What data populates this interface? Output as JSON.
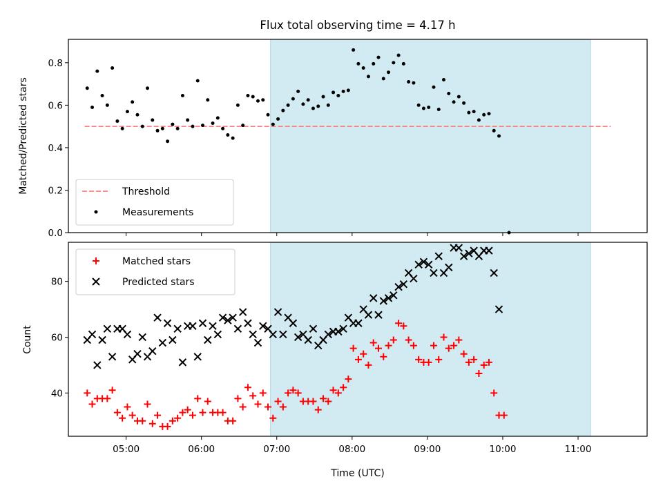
{
  "title": "Flux total observing time = 4.17 h",
  "chart_data": [
    {
      "type": "scatter",
      "ylabel": "Matched/Predicted stars",
      "ylim": [
        0,
        0.91
      ],
      "y_ticks": [
        "0.0",
        "0.2",
        "0.4",
        "0.6",
        "0.8"
      ],
      "x_range": [
        "04:14",
        "11:55"
      ],
      "shaded_interval": [
        "06:55",
        "11:10"
      ],
      "shade_color": "#add8e6",
      "threshold": {
        "name": "Threshold",
        "value": 0.5,
        "x_start": "04:27",
        "x_end": "11:26",
        "color": "#ff7f7f"
      },
      "legend": [
        "Threshold",
        "Measurements"
      ],
      "legend_position": "lower-left",
      "series": [
        {
          "name": "Measurements",
          "color": "#000000",
          "points": [
            [
              "04:29",
              0.68
            ],
            [
              "04:33",
              0.59
            ],
            [
              "04:37",
              0.76
            ],
            [
              "04:41",
              0.645
            ],
            [
              "04:45",
              0.6
            ],
            [
              "04:49",
              0.775
            ],
            [
              "04:53",
              0.525
            ],
            [
              "04:57",
              0.49
            ],
            [
              "05:01",
              0.57
            ],
            [
              "05:05",
              0.615
            ],
            [
              "05:09",
              0.555
            ],
            [
              "05:13",
              0.5
            ],
            [
              "05:17",
              0.68
            ],
            [
              "05:21",
              0.53
            ],
            [
              "05:25",
              0.48
            ],
            [
              "05:29",
              0.49
            ],
            [
              "05:33",
              0.43
            ],
            [
              "05:37",
              0.51
            ],
            [
              "05:41",
              0.49
            ],
            [
              "05:45",
              0.645
            ],
            [
              "05:49",
              0.53
            ],
            [
              "05:53",
              0.5
            ],
            [
              "05:57",
              0.715
            ],
            [
              "06:01",
              0.505
            ],
            [
              "06:05",
              0.625
            ],
            [
              "06:09",
              0.515
            ],
            [
              "06:13",
              0.54
            ],
            [
              "06:17",
              0.49
            ],
            [
              "06:21",
              0.46
            ],
            [
              "06:25",
              0.445
            ],
            [
              "06:29",
              0.6
            ],
            [
              "06:33",
              0.505
            ],
            [
              "06:37",
              0.645
            ],
            [
              "06:41",
              0.64
            ],
            [
              "06:45",
              0.62
            ],
            [
              "06:49",
              0.625
            ],
            [
              "06:53",
              0.555
            ],
            [
              "06:57",
              0.51
            ],
            [
              "07:01",
              0.535
            ],
            [
              "07:05",
              0.575
            ],
            [
              "07:09",
              0.6
            ],
            [
              "07:13",
              0.63
            ],
            [
              "07:17",
              0.665
            ],
            [
              "07:21",
              0.605
            ],
            [
              "07:25",
              0.625
            ],
            [
              "07:29",
              0.585
            ],
            [
              "07:33",
              0.595
            ],
            [
              "07:37",
              0.64
            ],
            [
              "07:41",
              0.6
            ],
            [
              "07:45",
              0.66
            ],
            [
              "07:49",
              0.645
            ],
            [
              "07:53",
              0.665
            ],
            [
              "07:57",
              0.67
            ],
            [
              "08:01",
              0.86
            ],
            [
              "08:05",
              0.795
            ],
            [
              "08:09",
              0.775
            ],
            [
              "08:13",
              0.735
            ],
            [
              "08:17",
              0.795
            ],
            [
              "08:21",
              0.825
            ],
            [
              "08:25",
              0.725
            ],
            [
              "08:29",
              0.755
            ],
            [
              "08:33",
              0.8
            ],
            [
              "08:37",
              0.835
            ],
            [
              "08:41",
              0.795
            ],
            [
              "08:45",
              0.71
            ],
            [
              "08:49",
              0.705
            ],
            [
              "08:53",
              0.6
            ],
            [
              "08:57",
              0.585
            ],
            [
              "09:01",
              0.59
            ],
            [
              "09:05",
              0.685
            ],
            [
              "09:09",
              0.58
            ],
            [
              "09:13",
              0.72
            ],
            [
              "09:17",
              0.655
            ],
            [
              "09:21",
              0.615
            ],
            [
              "09:25",
              0.64
            ],
            [
              "09:29",
              0.61
            ],
            [
              "09:33",
              0.565
            ],
            [
              "09:37",
              0.57
            ],
            [
              "09:41",
              0.53
            ],
            [
              "09:45",
              0.555
            ],
            [
              "09:49",
              0.56
            ],
            [
              "09:53",
              0.48
            ],
            [
              "09:57",
              0.455
            ],
            [
              "10:05",
              0.0
            ]
          ]
        }
      ]
    },
    {
      "type": "scatter",
      "xlabel": "Time (UTC)",
      "ylabel": "Count",
      "ylim": [
        24.5,
        94
      ],
      "y_ticks": [
        "40",
        "60",
        "80"
      ],
      "x_ticks": [
        "05:00",
        "06:00",
        "07:00",
        "08:00",
        "09:00",
        "10:00",
        "11:00"
      ],
      "x_range": [
        "04:14",
        "11:55"
      ],
      "shaded_interval": [
        "06:55",
        "11:10"
      ],
      "shade_color": "#add8e6",
      "legend": [
        "Matched stars",
        "Predicted stars"
      ],
      "legend_position": "upper-left",
      "series": [
        {
          "name": "Matched stars",
          "color": "#ff0000",
          "points": [
            [
              "04:29",
              40
            ],
            [
              "04:33",
              36
            ],
            [
              "04:37",
              38
            ],
            [
              "04:41",
              38
            ],
            [
              "04:45",
              38
            ],
            [
              "04:49",
              41
            ],
            [
              "04:53",
              33
            ],
            [
              "04:57",
              31
            ],
            [
              "05:01",
              35
            ],
            [
              "05:05",
              32
            ],
            [
              "05:09",
              30
            ],
            [
              "05:13",
              30
            ],
            [
              "05:17",
              36
            ],
            [
              "05:21",
              29
            ],
            [
              "05:25",
              32
            ],
            [
              "05:29",
              28
            ],
            [
              "05:33",
              28
            ],
            [
              "05:37",
              30
            ],
            [
              "05:41",
              31
            ],
            [
              "05:45",
              33
            ],
            [
              "05:49",
              34
            ],
            [
              "05:53",
              32
            ],
            [
              "05:57",
              38
            ],
            [
              "06:01",
              33
            ],
            [
              "06:05",
              37
            ],
            [
              "06:09",
              33
            ],
            [
              "06:13",
              33
            ],
            [
              "06:17",
              33
            ],
            [
              "06:21",
              30
            ],
            [
              "06:25",
              30
            ],
            [
              "06:29",
              38
            ],
            [
              "06:33",
              35
            ],
            [
              "06:37",
              42
            ],
            [
              "06:41",
              39
            ],
            [
              "06:45",
              36
            ],
            [
              "06:49",
              40
            ],
            [
              "06:53",
              35
            ],
            [
              "06:57",
              31
            ],
            [
              "07:01",
              37
            ],
            [
              "07:05",
              35
            ],
            [
              "07:09",
              40
            ],
            [
              "07:13",
              41
            ],
            [
              "07:17",
              40
            ],
            [
              "07:21",
              37
            ],
            [
              "07:25",
              37
            ],
            [
              "07:29",
              37
            ],
            [
              "07:33",
              34
            ],
            [
              "07:37",
              38
            ],
            [
              "07:41",
              37
            ],
            [
              "07:45",
              41
            ],
            [
              "07:49",
              40
            ],
            [
              "07:53",
              42
            ],
            [
              "07:57",
              45
            ],
            [
              "08:01",
              56
            ],
            [
              "08:05",
              52
            ],
            [
              "08:09",
              54
            ],
            [
              "08:13",
              50
            ],
            [
              "08:17",
              58
            ],
            [
              "08:21",
              56
            ],
            [
              "08:25",
              53
            ],
            [
              "08:29",
              57
            ],
            [
              "08:33",
              59
            ],
            [
              "08:37",
              65
            ],
            [
              "08:41",
              64
            ],
            [
              "08:45",
              59
            ],
            [
              "08:49",
              57
            ],
            [
              "08:53",
              52
            ],
            [
              "08:57",
              51
            ],
            [
              "09:01",
              51
            ],
            [
              "09:05",
              57
            ],
            [
              "09:09",
              52
            ],
            [
              "09:13",
              60
            ],
            [
              "09:17",
              56
            ],
            [
              "09:21",
              57
            ],
            [
              "09:25",
              59
            ],
            [
              "09:29",
              54
            ],
            [
              "09:33",
              51
            ],
            [
              "09:37",
              52
            ],
            [
              "09:41",
              47
            ],
            [
              "09:45",
              50
            ],
            [
              "09:49",
              51
            ],
            [
              "09:53",
              40
            ],
            [
              "09:57",
              32
            ],
            [
              "10:01",
              32
            ]
          ]
        },
        {
          "name": "Predicted stars",
          "color": "#000000",
          "points": [
            [
              "04:29",
              59
            ],
            [
              "04:33",
              61
            ],
            [
              "04:37",
              50
            ],
            [
              "04:41",
              59
            ],
            [
              "04:45",
              63
            ],
            [
              "04:49",
              53
            ],
            [
              "04:53",
              63
            ],
            [
              "04:57",
              63
            ],
            [
              "05:01",
              61
            ],
            [
              "05:05",
              52
            ],
            [
              "05:09",
              54
            ],
            [
              "05:13",
              60
            ],
            [
              "05:17",
              53
            ],
            [
              "05:21",
              55
            ],
            [
              "05:25",
              67
            ],
            [
              "05:29",
              58
            ],
            [
              "05:33",
              65
            ],
            [
              "05:37",
              59
            ],
            [
              "05:41",
              63
            ],
            [
              "05:45",
              51
            ],
            [
              "05:49",
              64
            ],
            [
              "05:53",
              64
            ],
            [
              "05:57",
              53
            ],
            [
              "06:01",
              65
            ],
            [
              "06:05",
              59
            ],
            [
              "06:09",
              64
            ],
            [
              "06:13",
              61
            ],
            [
              "06:17",
              67
            ],
            [
              "06:21",
              66
            ],
            [
              "06:25",
              67
            ],
            [
              "06:29",
              63
            ],
            [
              "06:33",
              69
            ],
            [
              "06:37",
              65
            ],
            [
              "06:41",
              61
            ],
            [
              "06:45",
              58
            ],
            [
              "06:49",
              64
            ],
            [
              "06:53",
              63
            ],
            [
              "06:57",
              61
            ],
            [
              "07:01",
              69
            ],
            [
              "07:05",
              61
            ],
            [
              "07:09",
              67
            ],
            [
              "07:13",
              65
            ],
            [
              "07:17",
              60
            ],
            [
              "07:21",
              61
            ],
            [
              "07:25",
              59
            ],
            [
              "07:29",
              63
            ],
            [
              "07:33",
              57
            ],
            [
              "07:37",
              59
            ],
            [
              "07:41",
              61
            ],
            [
              "07:45",
              62
            ],
            [
              "07:49",
              62
            ],
            [
              "07:53",
              63
            ],
            [
              "07:57",
              67
            ],
            [
              "08:01",
              65
            ],
            [
              "08:05",
              65
            ],
            [
              "08:09",
              70
            ],
            [
              "08:13",
              68
            ],
            [
              "08:17",
              74
            ],
            [
              "08:21",
              68
            ],
            [
              "08:25",
              73
            ],
            [
              "08:29",
              74
            ],
            [
              "08:33",
              75
            ],
            [
              "08:37",
              78
            ],
            [
              "08:41",
              79
            ],
            [
              "08:45",
              83
            ],
            [
              "08:49",
              81
            ],
            [
              "08:53",
              86
            ],
            [
              "08:57",
              87
            ],
            [
              "09:01",
              86
            ],
            [
              "09:05",
              83
            ],
            [
              "09:09",
              89
            ],
            [
              "09:13",
              83
            ],
            [
              "09:17",
              85
            ],
            [
              "09:21",
              92
            ],
            [
              "09:25",
              92
            ],
            [
              "09:29",
              89
            ],
            [
              "09:33",
              90
            ],
            [
              "09:37",
              91
            ],
            [
              "09:41",
              89
            ],
            [
              "09:45",
              91
            ],
            [
              "09:49",
              91
            ],
            [
              "09:53",
              83
            ],
            [
              "09:57",
              70
            ]
          ]
        }
      ]
    }
  ]
}
